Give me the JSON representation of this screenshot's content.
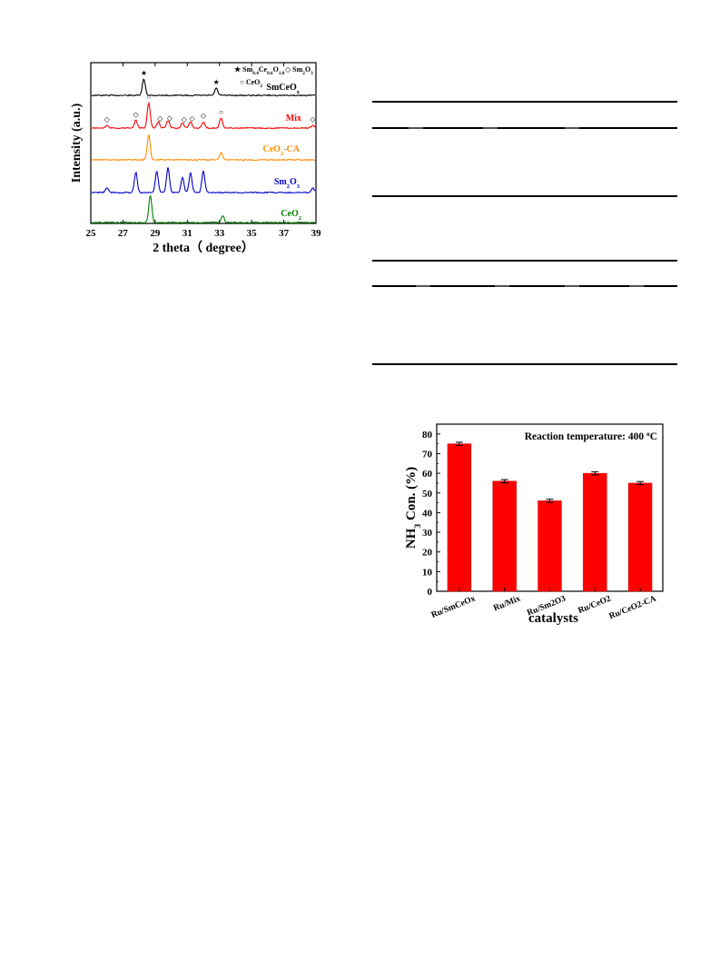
{
  "xrd": {
    "chart_data": {
      "type": "line",
      "xlabel": "2 theta（  degree）",
      "ylabel": "Intensity (a.u.)",
      "xlim": [
        25,
        39
      ],
      "xticks": [
        "25",
        "27",
        "29",
        "31",
        "33",
        "35",
        "37",
        "39"
      ],
      "legend": [
        {
          "symbol": "★",
          "label": "Sm",
          "sub1": "0.4",
          "mid1": "Ce",
          "sub2": "0.6",
          "mid2": "O",
          "sub3": "1.8"
        },
        {
          "symbol": "◇",
          "label": "Sm",
          "sub1": "2",
          "mid1": "O",
          "sub2": "3"
        },
        {
          "symbol": "○",
          "label": "Ce",
          "mid1": "O",
          "sub1": "2"
        }
      ],
      "series": [
        {
          "name": "SmCeOx",
          "label_main": "SmCeO",
          "label_sub": "x",
          "color": "#000000",
          "peaks": [
            [
              28.3,
              1.0
            ],
            [
              32.8,
              0.45
            ]
          ]
        },
        {
          "name": "Mix",
          "label_main": "Mix",
          "label_sub": "",
          "color": "#ff0000",
          "peaks": [
            [
              26.0,
              0.1
            ],
            [
              27.8,
              0.3
            ],
            [
              28.6,
              1.0
            ],
            [
              29.2,
              0.25
            ],
            [
              29.8,
              0.3
            ],
            [
              30.7,
              0.2
            ],
            [
              31.2,
              0.25
            ],
            [
              32.0,
              0.25
            ],
            [
              33.1,
              0.4
            ],
            [
              38.8,
              0.1
            ]
          ]
        },
        {
          "name": "CeO2-CA",
          "label_main": "CeO",
          "label_sub": "2",
          "label_suffix": "-CA",
          "color": "#ff8c00",
          "peaks": [
            [
              28.6,
              1.0
            ],
            [
              33.1,
              0.3
            ]
          ]
        },
        {
          "name": "Sm2O3",
          "label_main": "Sm",
          "label_sub": "2",
          "label_suffix": "O",
          "label_sub2": "3",
          "color": "#0000cc",
          "peaks": [
            [
              26.0,
              0.15
            ],
            [
              27.8,
              0.65
            ],
            [
              29.1,
              0.7
            ],
            [
              29.8,
              0.8
            ],
            [
              30.7,
              0.5
            ],
            [
              31.2,
              0.65
            ],
            [
              32.0,
              0.7
            ],
            [
              38.8,
              0.15
            ]
          ]
        },
        {
          "name": "CeO2",
          "label_main": "CeO",
          "label_sub": "2",
          "color": "#008000",
          "peaks": [
            [
              28.7,
              1.0
            ],
            [
              33.2,
              0.25
            ]
          ]
        }
      ],
      "markers": [
        {
          "series": "SmCeOx",
          "x": 28.3,
          "symbol": "★"
        },
        {
          "series": "SmCeOx",
          "x": 32.8,
          "symbol": "★"
        },
        {
          "series": "Mix",
          "x": 28.6,
          "symbol": "○"
        },
        {
          "series": "Mix",
          "x": 33.1,
          "symbol": "○"
        },
        {
          "series": "Mix",
          "x": 26.0,
          "symbol": "◇"
        },
        {
          "series": "Mix",
          "x": 27.8,
          "symbol": "◇"
        },
        {
          "series": "Mix",
          "x": 29.3,
          "symbol": "◇"
        },
        {
          "series": "Mix",
          "x": 29.9,
          "symbol": "◇"
        },
        {
          "series": "Mix",
          "x": 30.8,
          "symbol": "◇"
        },
        {
          "series": "Mix",
          "x": 31.3,
          "symbol": "◇"
        },
        {
          "series": "Mix",
          "x": 32.0,
          "symbol": "◇"
        },
        {
          "series": "Mix",
          "x": 38.8,
          "symbol": "◇"
        }
      ]
    }
  },
  "bar": {
    "chart_data": {
      "type": "bar",
      "categories": [
        "Ru/SmCeOx",
        "Ru/Mix",
        "Ru/Sm2O3",
        "Ru/CeO2",
        "Ru/CeO2-CA"
      ],
      "values": [
        75,
        56,
        46,
        60,
        55
      ],
      "errors": [
        0.8,
        0.8,
        0.8,
        0.8,
        0.8
      ],
      "xlabel": "catalysts",
      "ylabel_main": "NH",
      "ylabel_sub": "3",
      "ylabel_rest": " Con. (%)",
      "annotation_main": "Reaction temperature: 400 ",
      "annotation_sup": "o",
      "annotation_tail": "C",
      "ylim": [
        0,
        85
      ],
      "yticks": [
        "0",
        "10",
        "20",
        "30",
        "40",
        "50",
        "60",
        "70",
        "80"
      ],
      "bar_color": "#ff0000"
    }
  }
}
